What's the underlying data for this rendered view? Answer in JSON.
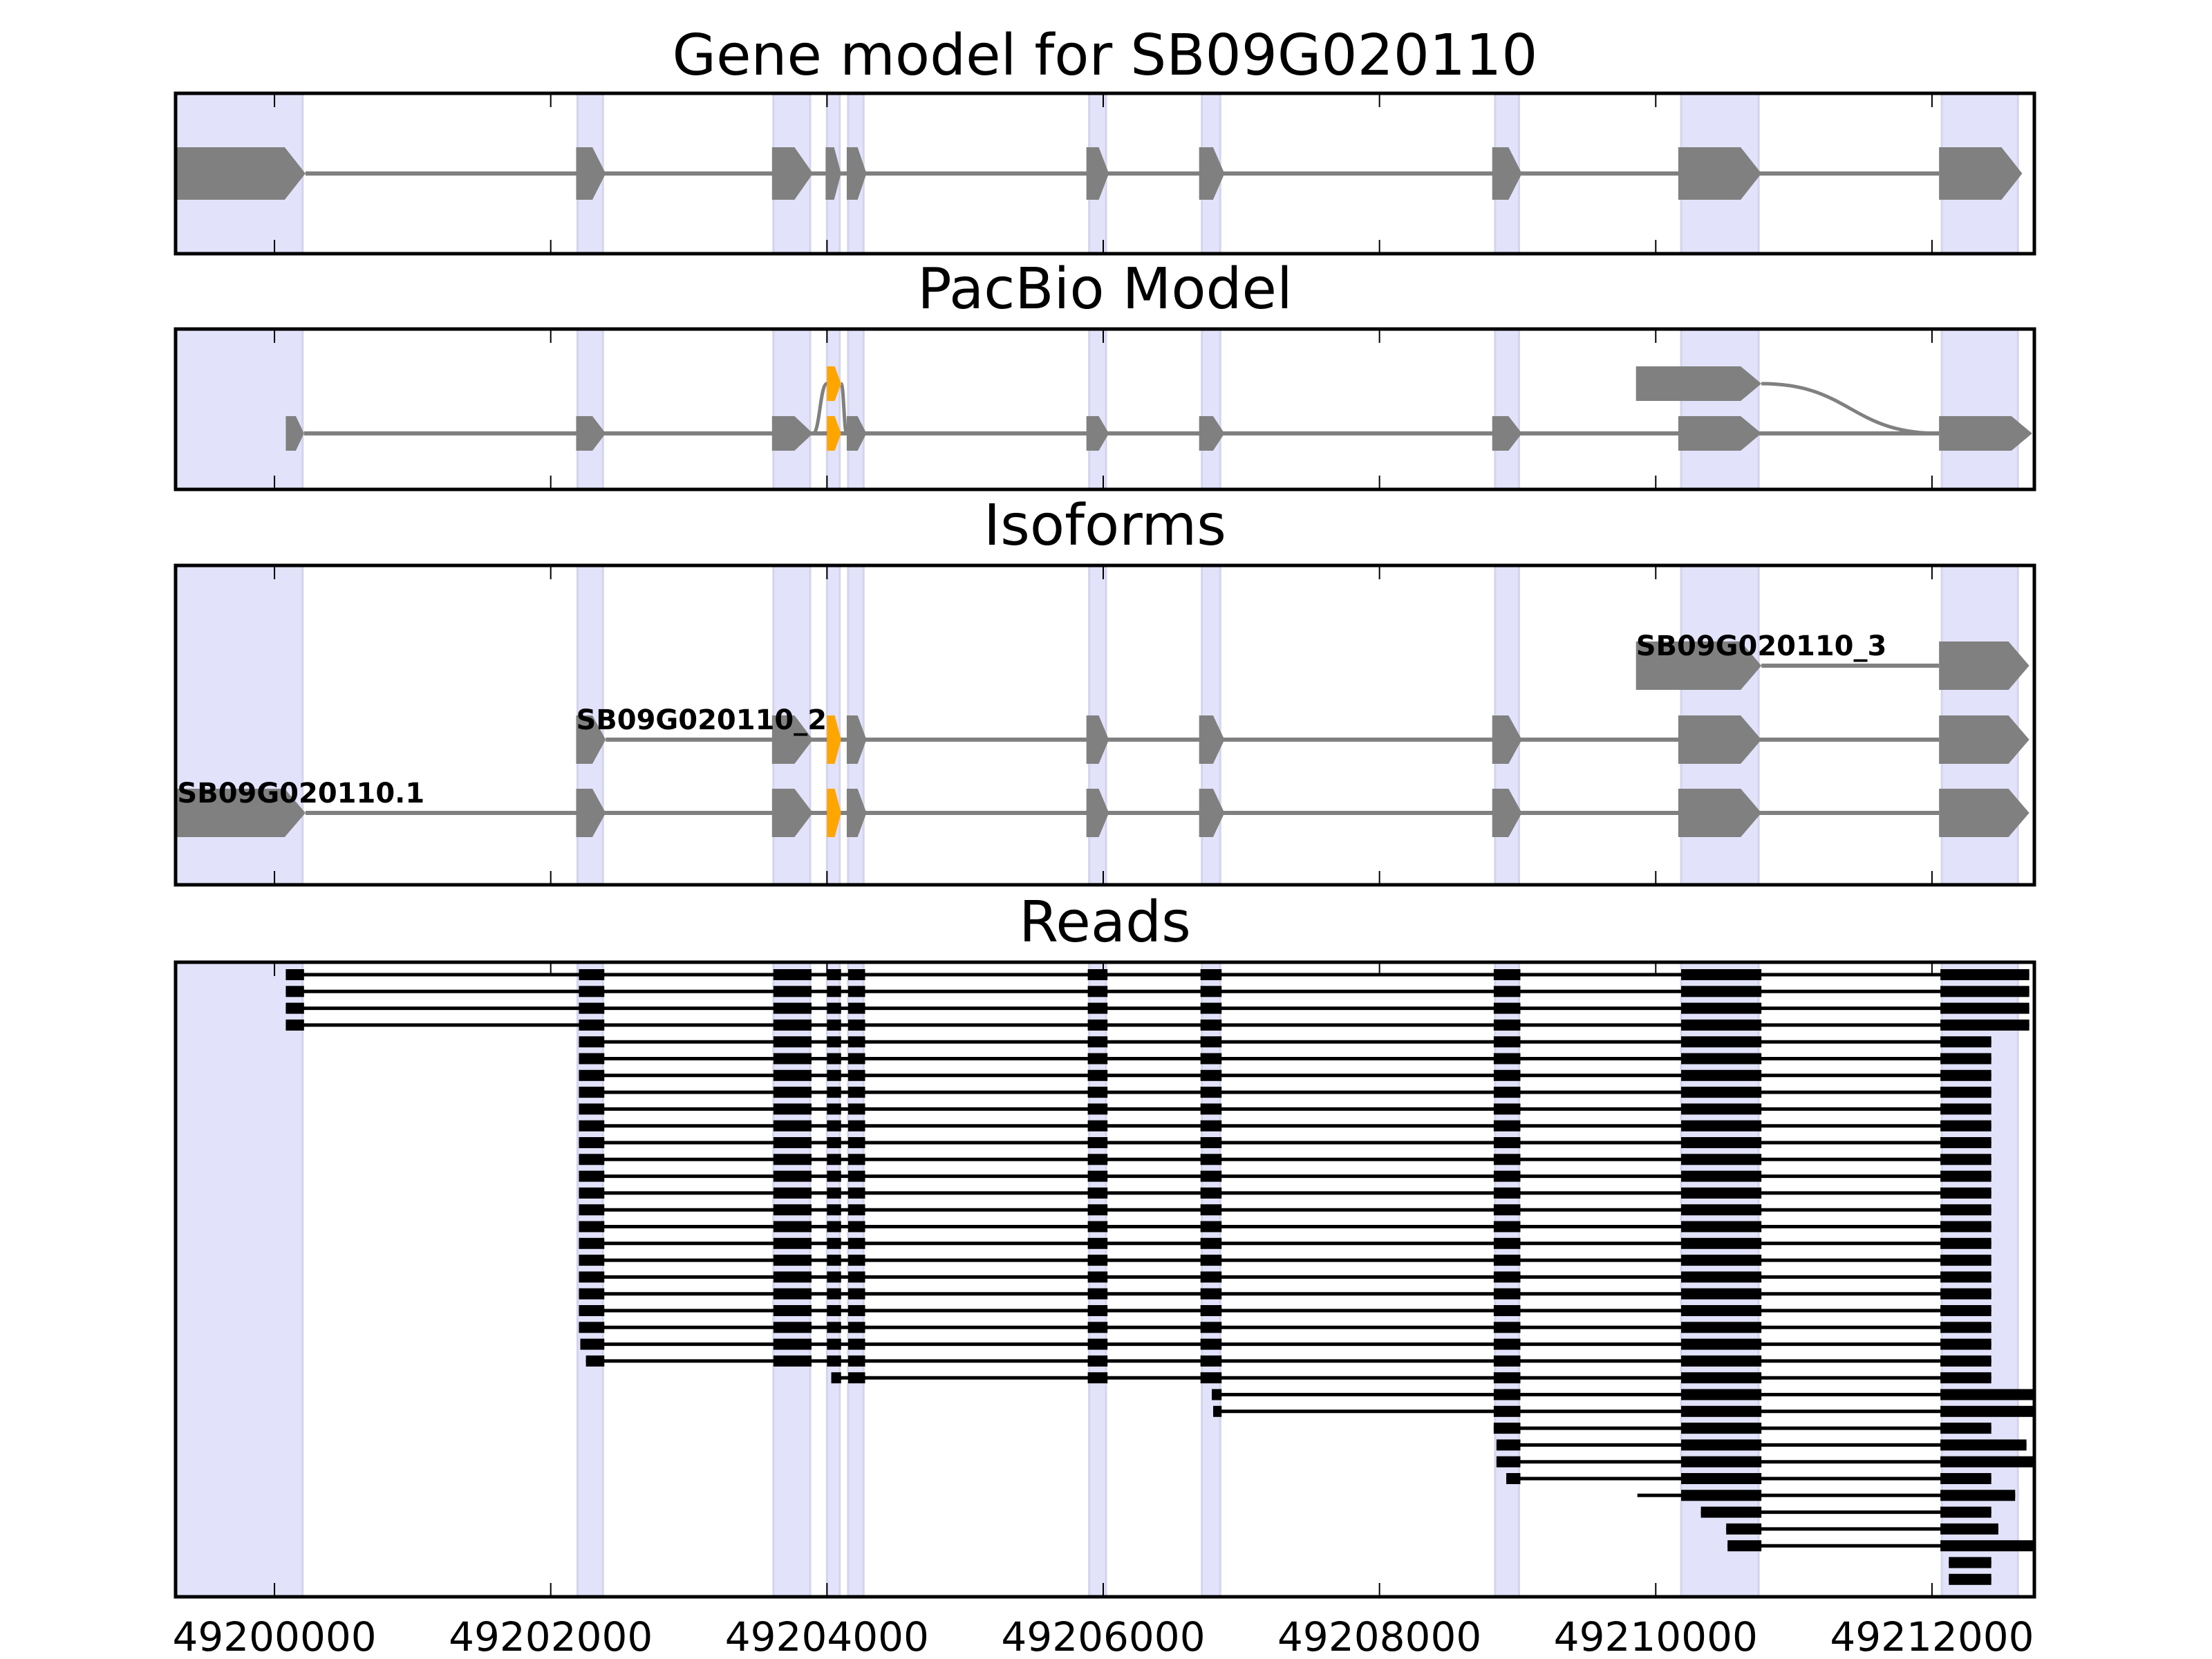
{
  "chart_data": {
    "type": "gene-track",
    "xlim": [
      49199284,
      49212741
    ],
    "x_ticks": [
      49200000,
      49202000,
      49204000,
      49206000,
      49208000,
      49210000,
      49212000
    ],
    "x_tick_labels": [
      "49200000",
      "49202000",
      "49204000",
      "49206000",
      "49208000",
      "49210000",
      "49212000"
    ],
    "colors": {
      "exon": "#808080",
      "alt_exon": "#FFA500",
      "read": "#000000",
      "highlight": "#E2E2FB",
      "frame": "#000000"
    },
    "highlights": [
      [
        49199284,
        49200204
      ],
      [
        49202194,
        49202378
      ],
      [
        49203612,
        49203878
      ],
      [
        49204000,
        49204092
      ],
      [
        49204153,
        49204265
      ],
      [
        49205898,
        49206020
      ],
      [
        49206714,
        49206847
      ],
      [
        49208837,
        49209010
      ],
      [
        49210184,
        49210745
      ],
      [
        49212071,
        49212622
      ]
    ],
    "panels": [
      {
        "title": "Gene model for SB09G020110",
        "tracks": [
          {
            "row": 0,
            "label": "",
            "exons": [
              [
                49199296,
                49200224
              ],
              [
                49202184,
                49202398
              ],
              [
                49203602,
                49203898
              ],
              [
                49203990,
                49204102
              ],
              [
                49204143,
                49204286
              ],
              [
                49205878,
                49206041
              ],
              [
                49206694,
                49206878
              ],
              [
                49208816,
                49209031
              ],
              [
                49210163,
                49210765
              ],
              [
                49212051,
                49212653
              ]
            ]
          }
        ]
      },
      {
        "title": "PacBio Model",
        "tracks": [
          {
            "row": 0,
            "label": "",
            "exons": [
              [
                49200082,
                49200214
              ],
              [
                49202184,
                49202398
              ],
              [
                49203602,
                49203898
              ],
              [
                49204000,
                49204102,
                "alt"
              ],
              [
                49204143,
                49204286
              ],
              [
                49205878,
                49206041
              ],
              [
                49206694,
                49206878
              ],
              [
                49208816,
                49209031
              ],
              [
                49210163,
                49210765
              ],
              [
                49212051,
                49212725
              ]
            ]
          },
          {
            "row": 1,
            "label": "",
            "exons": [
              [
                49204000,
                49204102,
                "alt"
              ],
              [
                49209857,
                49210765
              ]
            ],
            "no_intron": true
          }
        ],
        "connections": [
          {
            "from": [
              49203898,
              0
            ],
            "to": [
              49204000,
              1
            ]
          },
          {
            "from": [
              49204102,
              1
            ],
            "to": [
              49204143,
              0
            ]
          },
          {
            "from": [
              49210765,
              1
            ],
            "to": [
              49212051,
              0
            ]
          }
        ]
      },
      {
        "title": "Isoforms",
        "tracks": [
          {
            "row": 0,
            "label": "SB09G020110.1",
            "exons": [
              [
                49199296,
                49200224
              ],
              [
                49202184,
                49202398
              ],
              [
                49203602,
                49203898
              ],
              [
                49204000,
                49204102,
                "alt"
              ],
              [
                49204143,
                49204286
              ],
              [
                49205878,
                49206041
              ],
              [
                49206694,
                49206878
              ],
              [
                49208816,
                49209031
              ],
              [
                49210163,
                49210765
              ],
              [
                49212051,
                49212704
              ]
            ]
          },
          {
            "row": 1,
            "label": "SB09G020110_2",
            "exons": [
              [
                49202184,
                49202398
              ],
              [
                49203602,
                49203898
              ],
              [
                49204000,
                49204102,
                "alt"
              ],
              [
                49204143,
                49204286
              ],
              [
                49205878,
                49206041
              ],
              [
                49206694,
                49206878
              ],
              [
                49208816,
                49209031
              ],
              [
                49210163,
                49210765
              ],
              [
                49212051,
                49212704
              ]
            ]
          },
          {
            "row": 2,
            "label": "SB09G020110_3",
            "exons": [
              [
                49209857,
                49210765
              ],
              [
                49212051,
                49212704
              ]
            ]
          }
        ]
      },
      {
        "title": "Reads",
        "read_blocks": [
          [
            49200082,
            49200214
          ],
          [
            49202204,
            49202388
          ],
          [
            49203612,
            49203888
          ],
          [
            49204000,
            49204102
          ],
          [
            49204153,
            49204276
          ],
          [
            49205888,
            49206031
          ],
          [
            49206704,
            49206857
          ],
          [
            49208827,
            49209020
          ],
          [
            49210184,
            49210765
          ],
          [
            49212061,
            49212800
          ]
        ],
        "reads": [
          [
            49200082,
            49212704
          ],
          [
            49200082,
            49212704
          ],
          [
            49200082,
            49212704
          ],
          [
            49200082,
            49212704
          ],
          [
            49202204,
            49212429
          ],
          [
            49202204,
            49212429
          ],
          [
            49202204,
            49212429
          ],
          [
            49202204,
            49212429
          ],
          [
            49202204,
            49212429
          ],
          [
            49202204,
            49212429
          ],
          [
            49202204,
            49212429
          ],
          [
            49202204,
            49212429
          ],
          [
            49202204,
            49212429
          ],
          [
            49202204,
            49212429
          ],
          [
            49202204,
            49212429
          ],
          [
            49202204,
            49212429
          ],
          [
            49202204,
            49212429
          ],
          [
            49202204,
            49212429
          ],
          [
            49202204,
            49212429
          ],
          [
            49202204,
            49212429
          ],
          [
            49202204,
            49212429
          ],
          [
            49202204,
            49212429
          ],
          [
            49202214,
            49212429
          ],
          [
            49202255,
            49212429
          ],
          [
            49204031,
            49212429
          ],
          [
            49206786,
            49212741
          ],
          [
            49206796,
            49212741
          ],
          [
            49208827,
            49212429
          ],
          [
            49208847,
            49212684
          ],
          [
            49208847,
            49212741
          ],
          [
            49208918,
            49212429
          ],
          [
            49209867,
            49212602
          ],
          [
            49210327,
            49212429
          ],
          [
            49210510,
            49212480
          ],
          [
            49210520,
            49212741
          ],
          [
            49212122,
            49212429
          ],
          [
            49212122,
            49212429
          ]
        ]
      }
    ]
  }
}
